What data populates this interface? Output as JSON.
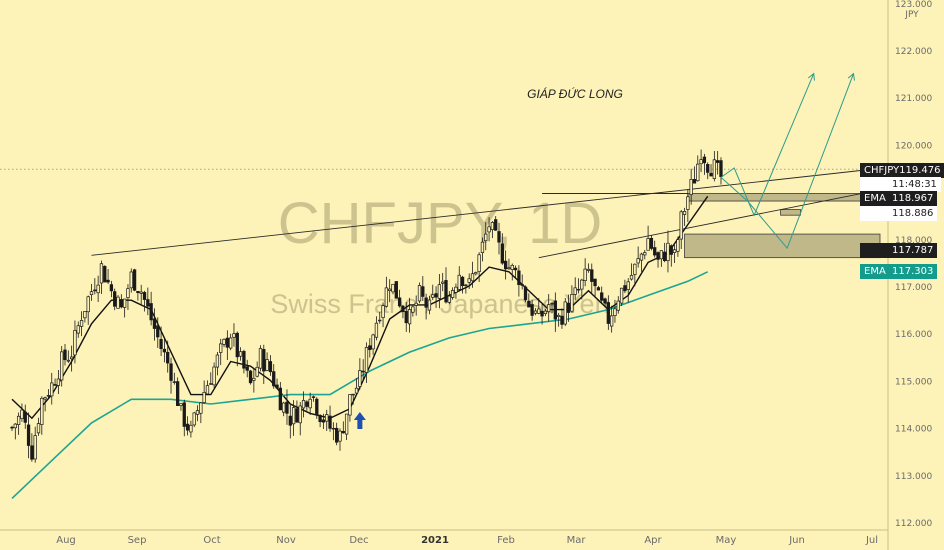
{
  "chart_data": {
    "type": "candlestick",
    "watermark_symbol": "CHFJPY, 1D",
    "watermark_name": "Swiss Franc / Japanese Yen",
    "annotation": "GIÁP ĐỨC LONG",
    "currency_label": "JPY",
    "ylim": [
      112.0,
      123.0
    ],
    "y_ticks": [
      "112.000",
      "113.000",
      "114.000",
      "115.000",
      "116.000",
      "117.000",
      "118.000",
      "119.000",
      "120.000",
      "121.000",
      "122.000",
      "123.000"
    ],
    "x_ticks": [
      "Aug",
      "Sep",
      "Oct",
      "Nov",
      "Dec",
      "2021",
      "Feb",
      "Mar",
      "Apr",
      "May",
      "Jun",
      "Jul"
    ],
    "price_tags": [
      {
        "name": "CHFJPY",
        "value": "119.476",
        "style": "dark"
      },
      {
        "name": "",
        "value": "11:48:31",
        "style": "white"
      },
      {
        "name": "EMA",
        "value": "118.967",
        "style": "dark"
      },
      {
        "name": "",
        "value": "118.886",
        "style": "white"
      },
      {
        "name": "",
        "value": "117.787",
        "style": "dark"
      },
      {
        "name": "EMA",
        "value": "117.303",
        "style": "teal"
      }
    ],
    "close_path": [
      [
        0,
        114.0
      ],
      [
        3,
        114.3
      ],
      [
        6,
        113.5
      ],
      [
        9,
        114.6
      ],
      [
        12,
        114.9
      ],
      [
        15,
        115.4
      ],
      [
        18,
        115.6
      ],
      [
        21,
        116.4
      ],
      [
        24,
        116.9
      ],
      [
        27,
        117.4
      ],
      [
        30,
        116.9
      ],
      [
        33,
        116.5
      ],
      [
        36,
        117.2
      ],
      [
        39,
        116.9
      ],
      [
        42,
        116.3
      ],
      [
        45,
        115.7
      ],
      [
        48,
        115.2
      ],
      [
        51,
        114.3
      ],
      [
        54,
        113.9
      ],
      [
        57,
        114.6
      ],
      [
        60,
        115.1
      ],
      [
        63,
        115.6
      ],
      [
        66,
        116.0
      ],
      [
        69,
        115.4
      ],
      [
        72,
        114.9
      ],
      [
        75,
        115.5
      ],
      [
        78,
        115.2
      ],
      [
        81,
        114.6
      ],
      [
        84,
        114.2
      ],
      [
        87,
        114.4
      ],
      [
        90,
        114.8
      ],
      [
        93,
        114.3
      ],
      [
        96,
        114.0
      ],
      [
        99,
        113.8
      ],
      [
        102,
        114.6
      ],
      [
        105,
        115.0
      ],
      [
        108,
        115.8
      ],
      [
        111,
        116.5
      ],
      [
        114,
        117.1
      ],
      [
        117,
        116.7
      ],
      [
        120,
        116.3
      ],
      [
        123,
        116.8
      ],
      [
        126,
        116.5
      ],
      [
        129,
        117.0
      ],
      [
        132,
        116.8
      ],
      [
        135,
        117.3
      ],
      [
        138,
        117.0
      ],
      [
        141,
        117.6
      ],
      [
        144,
        118.3
      ],
      [
        147,
        117.8
      ],
      [
        150,
        117.4
      ],
      [
        153,
        117.2
      ],
      [
        156,
        116.6
      ],
      [
        159,
        116.3
      ],
      [
        162,
        116.6
      ],
      [
        165,
        116.3
      ],
      [
        168,
        116.6
      ],
      [
        171,
        116.9
      ],
      [
        174,
        117.3
      ],
      [
        177,
        116.7
      ],
      [
        180,
        116.3
      ],
      [
        183,
        116.8
      ],
      [
        186,
        117.1
      ],
      [
        189,
        117.5
      ],
      [
        192,
        118.0
      ],
      [
        195,
        117.5
      ],
      [
        198,
        117.8
      ],
      [
        200,
        117.6
      ],
      [
        202,
        118.4
      ],
      [
        204,
        118.9
      ],
      [
        206,
        119.3
      ],
      [
        208,
        119.9
      ],
      [
        210,
        119.6
      ],
      [
        212,
        119.5
      ],
      [
        214,
        119.3
      ]
    ],
    "ema_short": [
      [
        0,
        114.6
      ],
      [
        6,
        114.2
      ],
      [
        12,
        114.7
      ],
      [
        18,
        115.4
      ],
      [
        24,
        116.2
      ],
      [
        30,
        116.7
      ],
      [
        36,
        116.7
      ],
      [
        42,
        116.5
      ],
      [
        48,
        115.6
      ],
      [
        54,
        114.7
      ],
      [
        60,
        114.7
      ],
      [
        66,
        115.4
      ],
      [
        72,
        115.3
      ],
      [
        78,
        115.0
      ],
      [
        84,
        114.5
      ],
      [
        90,
        114.3
      ],
      [
        96,
        114.2
      ],
      [
        102,
        114.4
      ],
      [
        108,
        115.3
      ],
      [
        114,
        116.3
      ],
      [
        120,
        116.6
      ],
      [
        126,
        116.6
      ],
      [
        132,
        116.8
      ],
      [
        138,
        117.0
      ],
      [
        144,
        117.4
      ],
      [
        150,
        117.3
      ],
      [
        156,
        116.9
      ],
      [
        162,
        116.5
      ],
      [
        168,
        116.5
      ],
      [
        174,
        116.9
      ],
      [
        180,
        116.5
      ],
      [
        186,
        116.8
      ],
      [
        192,
        117.5
      ],
      [
        198,
        117.7
      ],
      [
        204,
        118.3
      ],
      [
        210,
        118.9
      ]
    ],
    "ema_long": [
      [
        0,
        112.5
      ],
      [
        12,
        113.3
      ],
      [
        24,
        114.1
      ],
      [
        36,
        114.6
      ],
      [
        48,
        114.6
      ],
      [
        60,
        114.5
      ],
      [
        72,
        114.6
      ],
      [
        84,
        114.7
      ],
      [
        96,
        114.7
      ],
      [
        108,
        115.2
      ],
      [
        120,
        115.6
      ],
      [
        132,
        115.9
      ],
      [
        144,
        116.1
      ],
      [
        156,
        116.2
      ],
      [
        168,
        116.3
      ],
      [
        180,
        116.5
      ],
      [
        192,
        116.8
      ],
      [
        204,
        117.1
      ],
      [
        210,
        117.3
      ]
    ],
    "scenario_paths": [
      [
        [
          214,
          119.3
        ],
        [
          218,
          119.5
        ],
        [
          224,
          118.5
        ],
        [
          230,
          119.5
        ],
        [
          242,
          121.5
        ]
      ],
      [
        [
          214,
          119.3
        ],
        [
          222,
          118.8
        ],
        [
          234,
          117.8
        ],
        [
          254,
          121.5
        ]
      ]
    ],
    "trendlines": [
      [
        [
          24,
          117.65
        ],
        [
          263,
          119.5
        ]
      ],
      [
        [
          159,
          117.6
        ],
        [
          263,
          119.05
        ]
      ]
    ],
    "zones": [
      {
        "from": 204,
        "to": 259,
        "low": 118.8,
        "high": 118.96
      },
      {
        "from": 203,
        "to": 262,
        "low": 117.6,
        "high": 118.1
      },
      {
        "from": 232,
        "to": 238,
        "low": 118.5,
        "high": 118.62
      }
    ],
    "current_price": 119.476,
    "signal_arrow_day": 105,
    "day_range": [
      0,
      262
    ]
  }
}
